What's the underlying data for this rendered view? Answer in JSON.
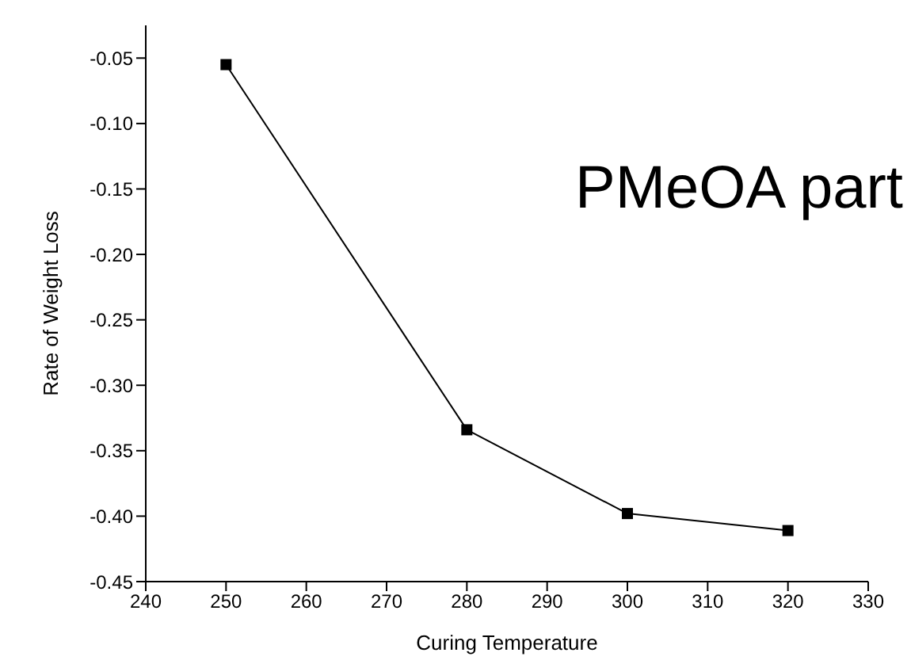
{
  "chart_data": {
    "type": "line",
    "xlabel": "Curing Temperature",
    "ylabel": "Rate of Weight Loss",
    "annotations": [
      "PMeOA part"
    ],
    "x": [
      250,
      280,
      300,
      320
    ],
    "series": [
      {
        "color": "#000000",
        "values": [
          -0.055,
          -0.334,
          -0.398,
          -0.411
        ]
      }
    ],
    "xlim": [
      240,
      330
    ],
    "xticks": [
      240,
      250,
      260,
      270,
      280,
      290,
      300,
      310,
      320,
      330
    ],
    "ylim": [
      -0.45,
      -0.025
    ],
    "yticks": [
      -0.45,
      {
        "value": -0.4,
        "label": "-0.40"
      },
      -0.35,
      {
        "value": -0.3,
        "label": "-0.30"
      },
      -0.25,
      {
        "value": -0.2,
        "label": "-0.20"
      },
      -0.15,
      {
        "value": -0.1,
        "label": "-0.10"
      },
      -0.05
    ],
    "marker": "square",
    "line_style": "solid",
    "grid": false,
    "legend": false
  }
}
